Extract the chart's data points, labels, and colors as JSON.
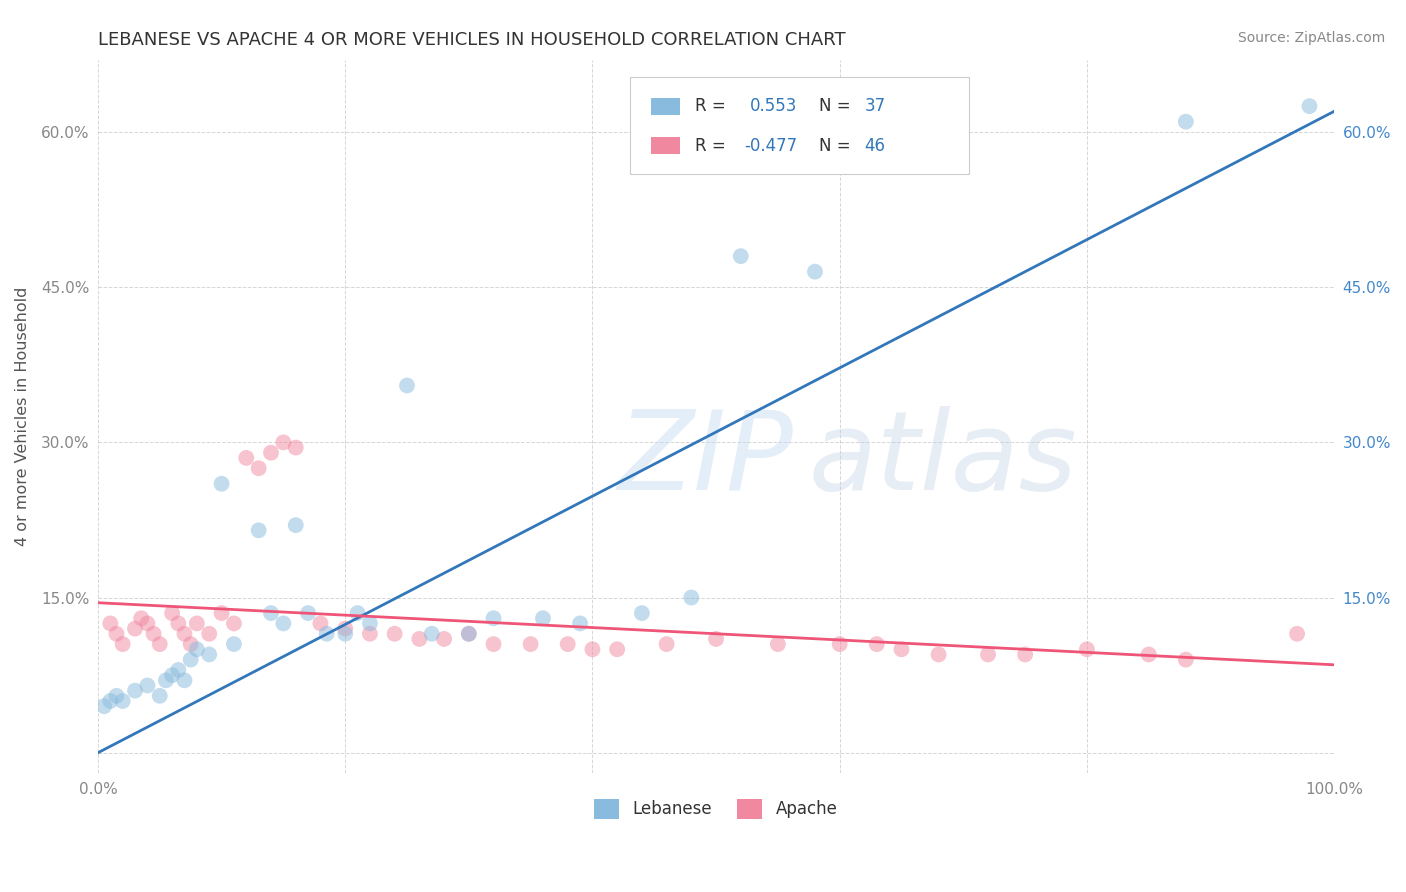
{
  "title": "LEBANESE VS APACHE 4 OR MORE VEHICLES IN HOUSEHOLD CORRELATION CHART",
  "source": "Source: ZipAtlas.com",
  "ylabel": "4 or more Vehicles in Household",
  "xlim": [
    0.0,
    1.0
  ],
  "ylim": [
    -0.02,
    0.67
  ],
  "xticks": [
    0.0,
    0.2,
    0.4,
    0.6,
    0.8,
    1.0
  ],
  "xticklabels": [
    "0.0%",
    "",
    "",
    "",
    "",
    "100.0%"
  ],
  "yticks": [
    0.0,
    0.15,
    0.3,
    0.45,
    0.6
  ],
  "left_yticklabels": [
    "",
    "15.0%",
    "30.0%",
    "45.0%",
    "60.0%"
  ],
  "right_yticklabels": [
    "",
    "15.0%",
    "30.0%",
    "45.0%",
    "60.0%"
  ],
  "legend_entries": [
    {
      "label": "Lebanese",
      "R": 0.553,
      "N": 37
    },
    {
      "label": "Apache",
      "R": -0.477,
      "N": 46
    }
  ],
  "watermark_zip": "ZIP",
  "watermark_atlas": "atlas",
  "blue_line": {
    "x0": 0.0,
    "y0": 0.0,
    "x1": 1.0,
    "y1": 0.62
  },
  "pink_line": {
    "x0": 0.0,
    "y0": 0.145,
    "x1": 1.0,
    "y1": 0.085
  },
  "lebanese_points": [
    [
      0.005,
      0.045
    ],
    [
      0.01,
      0.05
    ],
    [
      0.015,
      0.055
    ],
    [
      0.02,
      0.05
    ],
    [
      0.03,
      0.06
    ],
    [
      0.04,
      0.065
    ],
    [
      0.05,
      0.055
    ],
    [
      0.055,
      0.07
    ],
    [
      0.06,
      0.075
    ],
    [
      0.065,
      0.08
    ],
    [
      0.07,
      0.07
    ],
    [
      0.075,
      0.09
    ],
    [
      0.08,
      0.1
    ],
    [
      0.09,
      0.095
    ],
    [
      0.1,
      0.26
    ],
    [
      0.11,
      0.105
    ],
    [
      0.13,
      0.215
    ],
    [
      0.14,
      0.135
    ],
    [
      0.15,
      0.125
    ],
    [
      0.16,
      0.22
    ],
    [
      0.17,
      0.135
    ],
    [
      0.185,
      0.115
    ],
    [
      0.2,
      0.115
    ],
    [
      0.21,
      0.135
    ],
    [
      0.22,
      0.125
    ],
    [
      0.25,
      0.355
    ],
    [
      0.27,
      0.115
    ],
    [
      0.3,
      0.115
    ],
    [
      0.32,
      0.13
    ],
    [
      0.36,
      0.13
    ],
    [
      0.39,
      0.125
    ],
    [
      0.44,
      0.135
    ],
    [
      0.48,
      0.15
    ],
    [
      0.52,
      0.48
    ],
    [
      0.58,
      0.465
    ],
    [
      0.88,
      0.61
    ],
    [
      0.98,
      0.625
    ]
  ],
  "apache_points": [
    [
      0.01,
      0.125
    ],
    [
      0.015,
      0.115
    ],
    [
      0.02,
      0.105
    ],
    [
      0.03,
      0.12
    ],
    [
      0.035,
      0.13
    ],
    [
      0.04,
      0.125
    ],
    [
      0.045,
      0.115
    ],
    [
      0.05,
      0.105
    ],
    [
      0.06,
      0.135
    ],
    [
      0.065,
      0.125
    ],
    [
      0.07,
      0.115
    ],
    [
      0.075,
      0.105
    ],
    [
      0.08,
      0.125
    ],
    [
      0.09,
      0.115
    ],
    [
      0.1,
      0.135
    ],
    [
      0.11,
      0.125
    ],
    [
      0.12,
      0.285
    ],
    [
      0.13,
      0.275
    ],
    [
      0.14,
      0.29
    ],
    [
      0.15,
      0.3
    ],
    [
      0.16,
      0.295
    ],
    [
      0.18,
      0.125
    ],
    [
      0.2,
      0.12
    ],
    [
      0.22,
      0.115
    ],
    [
      0.24,
      0.115
    ],
    [
      0.26,
      0.11
    ],
    [
      0.28,
      0.11
    ],
    [
      0.3,
      0.115
    ],
    [
      0.32,
      0.105
    ],
    [
      0.35,
      0.105
    ],
    [
      0.38,
      0.105
    ],
    [
      0.4,
      0.1
    ],
    [
      0.42,
      0.1
    ],
    [
      0.46,
      0.105
    ],
    [
      0.5,
      0.11
    ],
    [
      0.55,
      0.105
    ],
    [
      0.6,
      0.105
    ],
    [
      0.63,
      0.105
    ],
    [
      0.65,
      0.1
    ],
    [
      0.68,
      0.095
    ],
    [
      0.72,
      0.095
    ],
    [
      0.75,
      0.095
    ],
    [
      0.8,
      0.1
    ],
    [
      0.85,
      0.095
    ],
    [
      0.88,
      0.09
    ],
    [
      0.97,
      0.115
    ]
  ],
  "background_color": "#ffffff",
  "grid_color": "#cccccc",
  "title_color": "#333333",
  "axis_label_color": "#555555",
  "left_tick_color": "#888888",
  "right_tick_color": "#4488cc",
  "blue_scatter_color": "#88bbdd",
  "pink_scatter_color": "#f088a0",
  "blue_line_color": "#3377bb",
  "pink_line_color": "#ee5577",
  "legend_box_color": "#dddddd",
  "legend_R_color": "#3377bb",
  "legend_text_color": "#333333"
}
